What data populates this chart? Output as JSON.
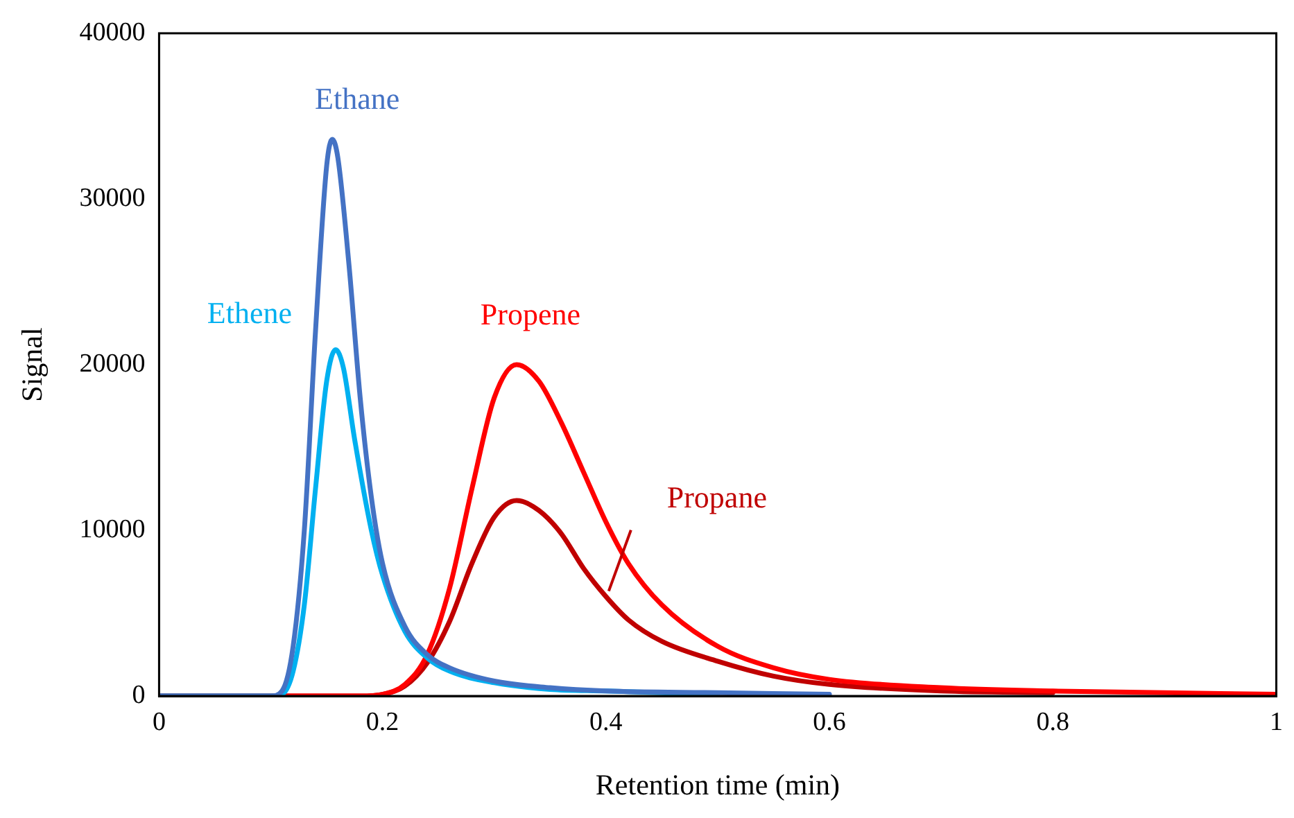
{
  "chart_data": {
    "type": "line",
    "xlabel": "Retention time (min)",
    "ylabel": "Signal",
    "xlim": [
      0,
      1
    ],
    "xticks": [
      0,
      0.2,
      0.4,
      0.6,
      0.8,
      1
    ],
    "ylim": [
      0,
      40000
    ],
    "yticks": [
      0,
      10000,
      20000,
      30000,
      40000
    ],
    "grid": false,
    "legend": false,
    "marker": "none",
    "line_style": "solid",
    "series": [
      {
        "name": "Ethane",
        "color": "#4472c4",
        "x": [
          0,
          0.1,
          0.11,
          0.12,
          0.13,
          0.14,
          0.15,
          0.155,
          0.16,
          0.17,
          0.18,
          0.19,
          0.2,
          0.22,
          0.24,
          0.26,
          0.3,
          0.35,
          0.4,
          0.5,
          0.6
        ],
        "values": [
          0,
          0,
          300,
          3000,
          10000,
          22000,
          32000,
          33600,
          32500,
          26000,
          18000,
          12000,
          8000,
          4200,
          2500,
          1700,
          900,
          500,
          300,
          200,
          100
        ]
      },
      {
        "name": "Ethene",
        "color": "#00b0f0",
        "x": [
          0,
          0.1,
          0.11,
          0.12,
          0.13,
          0.14,
          0.15,
          0.158,
          0.165,
          0.175,
          0.19,
          0.2,
          0.22,
          0.24,
          0.26,
          0.3,
          0.35,
          0.4,
          0.5
        ],
        "values": [
          0,
          0,
          100,
          1500,
          5500,
          12500,
          19000,
          20900,
          19800,
          15500,
          10000,
          7300,
          3900,
          2300,
          1500,
          800,
          400,
          300,
          100
        ]
      },
      {
        "name": "Propene",
        "color": "#ff0000",
        "x": [
          0,
          0.18,
          0.2,
          0.22,
          0.24,
          0.26,
          0.28,
          0.3,
          0.32,
          0.34,
          0.36,
          0.38,
          0.4,
          0.42,
          0.45,
          0.5,
          0.55,
          0.6,
          0.7,
          0.8,
          0.9,
          1
        ],
        "values": [
          0,
          0,
          100,
          700,
          2500,
          6500,
          12500,
          18000,
          20000,
          19000,
          16500,
          13500,
          10500,
          8000,
          5500,
          3000,
          1700,
          1000,
          500,
          300,
          200,
          100
        ]
      },
      {
        "name": "Propane",
        "color": "#c00000",
        "x": [
          0,
          0.18,
          0.2,
          0.22,
          0.24,
          0.26,
          0.28,
          0.3,
          0.32,
          0.34,
          0.36,
          0.38,
          0.4,
          0.42,
          0.45,
          0.5,
          0.55,
          0.6,
          0.7,
          0.8
        ],
        "values": [
          0,
          0,
          100,
          600,
          2000,
          4500,
          8000,
          10800,
          11800,
          11200,
          9800,
          7700,
          6000,
          4600,
          3300,
          2100,
          1200,
          700,
          300,
          200
        ]
      }
    ]
  }
}
